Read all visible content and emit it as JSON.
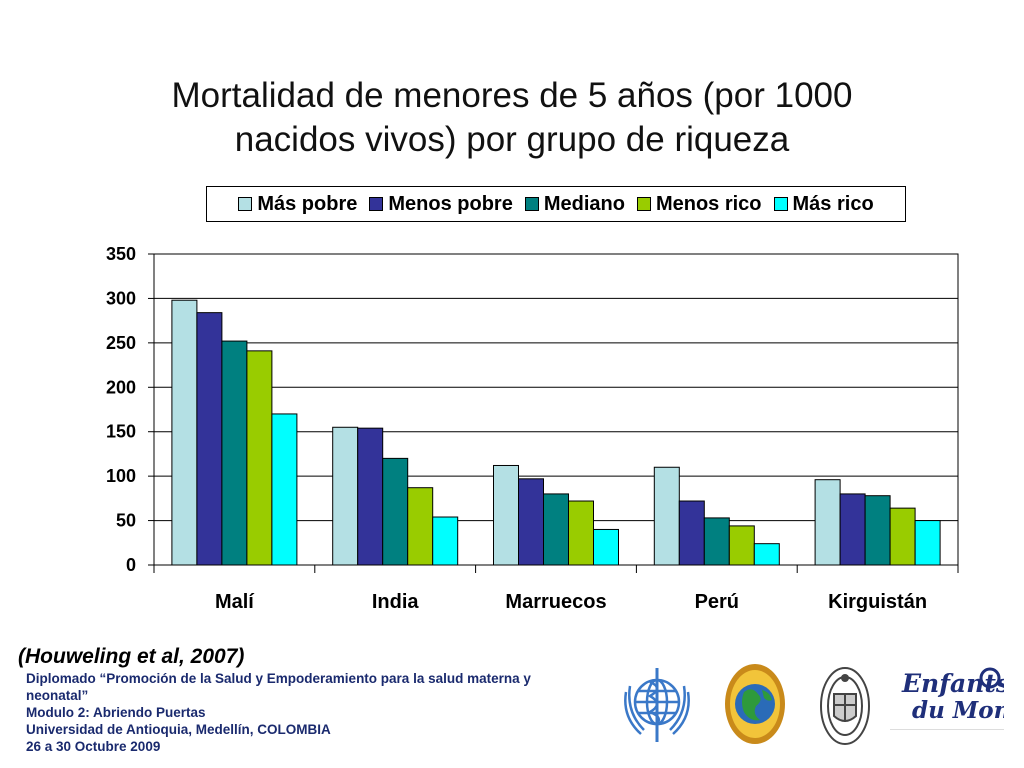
{
  "slide": {
    "title_line1": "Mortalidad de menores de 5 años (por 1000",
    "title_line2": "nacidos vivos) por grupo de riqueza",
    "citation": "(Houweling et al, 2007)",
    "footer": [
      "Diplomado “Promoción de la Salud y Empoderamiento para la salud materna y",
      "neonatal”",
      "Modulo 2: Abriendo Puertas",
      "Universidad de Antioquia, Medellín, COLOMBIA",
      "26 a 30 Octubre 2009"
    ],
    "logos": {
      "who": "who-emblem-icon",
      "globe_seal": "globe-seal-icon",
      "university_seal": "university-seal-icon",
      "enfants_line1": "Enfants",
      "enfants_line2": "du Monde"
    }
  },
  "chart_data": {
    "type": "bar",
    "categories": [
      "Malí",
      "India",
      "Marruecos",
      "Perú",
      "Kirguistán"
    ],
    "series": [
      {
        "name": "Más pobre",
        "color": "#b4e0e4",
        "values": [
          298,
          155,
          112,
          110,
          96
        ]
      },
      {
        "name": "Menos pobre",
        "color": "#333399",
        "values": [
          284,
          154,
          97,
          72,
          80
        ]
      },
      {
        "name": "Mediano",
        "color": "#008080",
        "values": [
          252,
          120,
          80,
          53,
          78
        ]
      },
      {
        "name": "Menos rico",
        "color": "#99cc00",
        "values": [
          241,
          87,
          72,
          44,
          64
        ]
      },
      {
        "name": "Más rico",
        "color": "#00ffff",
        "values": [
          170,
          54,
          40,
          24,
          50
        ]
      }
    ],
    "ylim": [
      0,
      350
    ],
    "yticks": [
      "0",
      "50",
      "100",
      "150",
      "200",
      "250",
      "300",
      "350"
    ],
    "grid": true,
    "legend_position": "top"
  }
}
